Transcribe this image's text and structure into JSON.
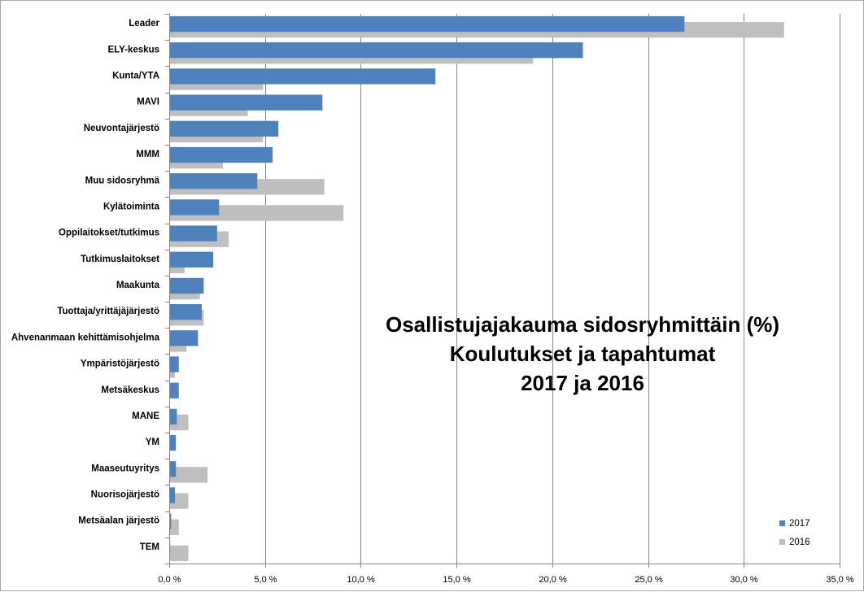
{
  "chart_data": {
    "type": "bar",
    "orientation": "horizontal",
    "title_lines": [
      "Osallistujajakauma sidosryhmittäin (%)",
      "Koulutukset ja tapahtumat",
      "2017 ja 2016"
    ],
    "categories": [
      "Leader",
      "ELY-keskus",
      "Kunta/YTA",
      "MAVI",
      "Neuvontajärjestö",
      "MMM",
      "Muu sidosryhmä",
      "Kylätoiminta",
      "Oppilaitokset/tutkimus",
      "Tutkimuslaitokset",
      "Maakunta",
      "Tuottaja/yrittäjäjärjestö",
      "Ahvenanmaan kehittämisohjelma",
      "Ympäristöjärjestö",
      "Metsäkeskus",
      "MANE",
      "YM",
      "Maaseutuyritys",
      "Nuorisojärjestö",
      "Metsäalan järjestö",
      "TEM"
    ],
    "series": [
      {
        "name": "2017",
        "color": "#4f81bd",
        "values": [
          26.9,
          21.6,
          13.9,
          8.0,
          5.7,
          5.4,
          4.6,
          2.6,
          2.5,
          2.3,
          1.8,
          1.7,
          1.5,
          0.5,
          0.5,
          0.4,
          0.35,
          0.35,
          0.3,
          0.1,
          0.05
        ]
      },
      {
        "name": "2016",
        "color": "#bfbfbf",
        "values": [
          32.1,
          19.0,
          4.9,
          4.1,
          4.9,
          2.8,
          8.1,
          9.1,
          3.1,
          0.8,
          1.6,
          1.8,
          0.9,
          0.3,
          0.0,
          1.0,
          0.0,
          2.0,
          1.0,
          0.5,
          1.0
        ]
      }
    ],
    "x_ticks": [
      "0,0 %",
      "5,0 %",
      "10,0 %",
      "15,0 %",
      "20,0 %",
      "25,0 %",
      "30,0 %",
      "35,0 %"
    ],
    "xlim": [
      0,
      35
    ],
    "grid": "vertical",
    "legend_position": "bottom-right"
  }
}
